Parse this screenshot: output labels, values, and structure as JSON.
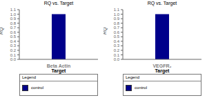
{
  "chart_data": [
    {
      "type": "bar",
      "title": "RQ vs. Target",
      "xlabel": "Beta Actin",
      "ylabel": "RQ",
      "categories": [
        null
      ],
      "series": [
        {
          "name": "control",
          "color": "#00008B",
          "values": [
            1.0
          ]
        }
      ],
      "ylim": [
        0.0,
        1.1
      ],
      "yticks": [
        {
          "value": 0.0,
          "label": "0.0"
        },
        0.1,
        0.2,
        0.3,
        0.4,
        0.5,
        0.6,
        0.7,
        0.8,
        0.9,
        {
          "value": 1.0,
          "label": "1.0"
        },
        1.1
      ],
      "grid": false,
      "legend": "bottom",
      "annotations": [
        "Target",
        "Legend"
      ]
    },
    {
      "type": "bar",
      "title": "RQ vs. Target",
      "xlabel": "VEGFR₂",
      "ylabel": "RQ",
      "categories": [
        null
      ],
      "series": [
        {
          "name": "control",
          "color": "#00008B",
          "values": [
            1.0
          ]
        }
      ],
      "ylim": [
        0.0,
        1.1
      ],
      "yticks": [
        {
          "value": 0.0,
          "label": "0.0"
        },
        0.1,
        0.2,
        0.3,
        0.4,
        0.5,
        0.6,
        0.7,
        0.8,
        0.9,
        {
          "value": 1.0,
          "label": "1.0"
        },
        1.1
      ],
      "grid": false,
      "legend": "bottom",
      "annotations": [
        "Target",
        "Legend"
      ]
    }
  ]
}
